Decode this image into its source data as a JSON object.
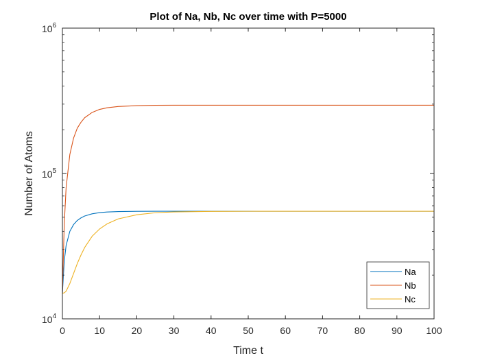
{
  "chart_data": {
    "type": "line",
    "title": "Plot of Na, Nb, Nc over time with P=5000",
    "xlabel": "Time t",
    "ylabel": "Number of Atoms",
    "xlim": [
      0,
      100
    ],
    "ylim": [
      10000,
      1000000
    ],
    "yscale": "log",
    "grid": false,
    "legend_position": "bottom-right",
    "xticks": [
      "0",
      "10",
      "20",
      "30",
      "40",
      "50",
      "60",
      "70",
      "80",
      "90",
      "100"
    ],
    "yticks": [
      {
        "base": "10",
        "exp": "4"
      },
      {
        "base": "10",
        "exp": "5"
      },
      {
        "base": "10",
        "exp": "6"
      }
    ],
    "x": [
      0,
      0.5,
      1,
      2,
      3,
      4,
      5,
      6,
      8,
      10,
      12,
      15,
      20,
      25,
      30,
      40,
      50,
      60,
      70,
      80,
      90,
      100
    ],
    "series": [
      {
        "name": "Na",
        "color": "#0072BD",
        "values": [
          15000,
          25000,
          32000,
          40000,
          44500,
          47500,
          49500,
          51000,
          52800,
          53800,
          54300,
          54700,
          54900,
          55000,
          55000,
          55000,
          55000,
          55000,
          55000,
          55000,
          55000,
          55000
        ]
      },
      {
        "name": "Nb",
        "color": "#D95319",
        "values": [
          15000,
          45000,
          80000,
          135000,
          175000,
          205000,
          225000,
          242000,
          263000,
          276000,
          283000,
          289000,
          293000,
          294500,
          295000,
          295000,
          295000,
          295000,
          295000,
          295000,
          295000,
          295000
        ]
      },
      {
        "name": "Nc",
        "color": "#EDB120",
        "values": [
          15000,
          15100,
          15500,
          17500,
          20500,
          24000,
          27500,
          31000,
          37000,
          41500,
          45000,
          48700,
          52000,
          53700,
          54400,
          54850,
          54950,
          55000,
          55000,
          55000,
          55000,
          55000
        ]
      }
    ]
  }
}
